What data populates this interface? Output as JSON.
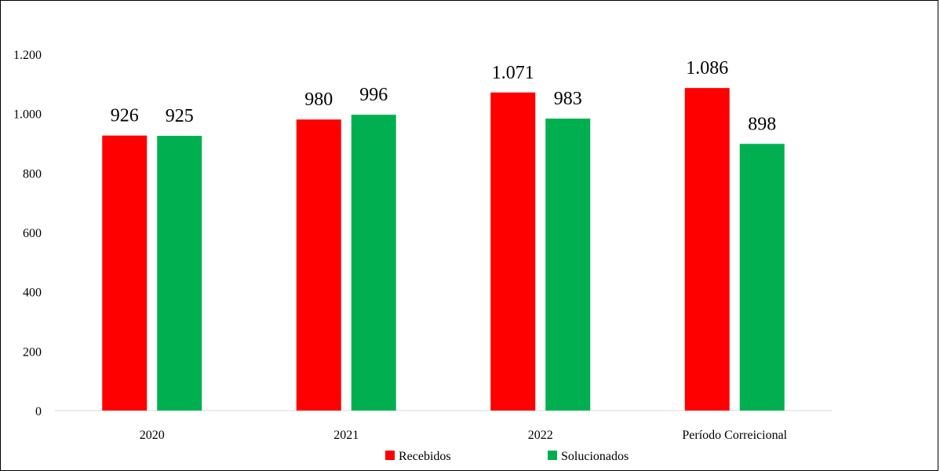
{
  "chart_data": {
    "type": "bar",
    "categories": [
      "2020",
      "2021",
      "2022",
      "Período Correicional"
    ],
    "series": [
      {
        "name": "Recebidos",
        "values": [
          926,
          980,
          1071,
          1086
        ],
        "labels": [
          "926",
          "980",
          "1.071",
          "1.086"
        ],
        "color": "#ff0000"
      },
      {
        "name": "Solucionados",
        "values": [
          925,
          996,
          983,
          898
        ],
        "labels": [
          "925",
          "996",
          "983",
          "898"
        ],
        "color": "#00b050"
      }
    ],
    "y_ticks": [
      0,
      200,
      400,
      600,
      800,
      1000,
      1200
    ],
    "y_tick_labels": [
      "0",
      "200",
      "400",
      "600",
      "800",
      "1.000",
      "1.200"
    ],
    "ylim": [
      0,
      1200
    ],
    "grid": false,
    "legend_position": "bottom",
    "title": "",
    "xlabel": "",
    "ylabel": ""
  }
}
